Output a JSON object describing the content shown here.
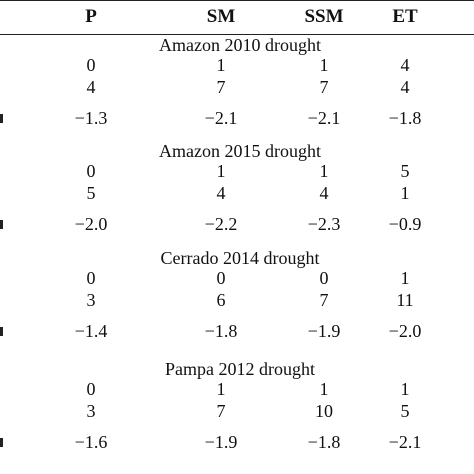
{
  "table": {
    "columns": [
      "P",
      "SM",
      "SSM",
      "ET"
    ],
    "sections": [
      {
        "title": "Amazon 2010 drought",
        "rows": [
          [
            "0",
            "1",
            "1",
            "4"
          ],
          [
            "4",
            "7",
            "7",
            "4"
          ],
          [
            "−1.3",
            "−2.1",
            "−2.1",
            "−1.8"
          ]
        ]
      },
      {
        "title": "Amazon 2015 drought",
        "rows": [
          [
            "0",
            "1",
            "1",
            "5"
          ],
          [
            "5",
            "4",
            "4",
            "1"
          ],
          [
            "−2.0",
            "−2.2",
            "−2.3",
            "−0.9"
          ]
        ]
      },
      {
        "title": "Cerrado 2014 drought",
        "rows": [
          [
            "0",
            "0",
            "0",
            "1"
          ],
          [
            "3",
            "6",
            "7",
            "11"
          ],
          [
            "−1.4",
            "−1.8",
            "−1.9",
            "−2.0"
          ]
        ]
      },
      {
        "title": "Pampa 2012 drought",
        "rows": [
          [
            "0",
            "1",
            "1",
            "1"
          ],
          [
            "3",
            "7",
            "10",
            "5"
          ],
          [
            "−1.6",
            "−1.9",
            "−1.8",
            "−2.1"
          ]
        ]
      }
    ]
  }
}
